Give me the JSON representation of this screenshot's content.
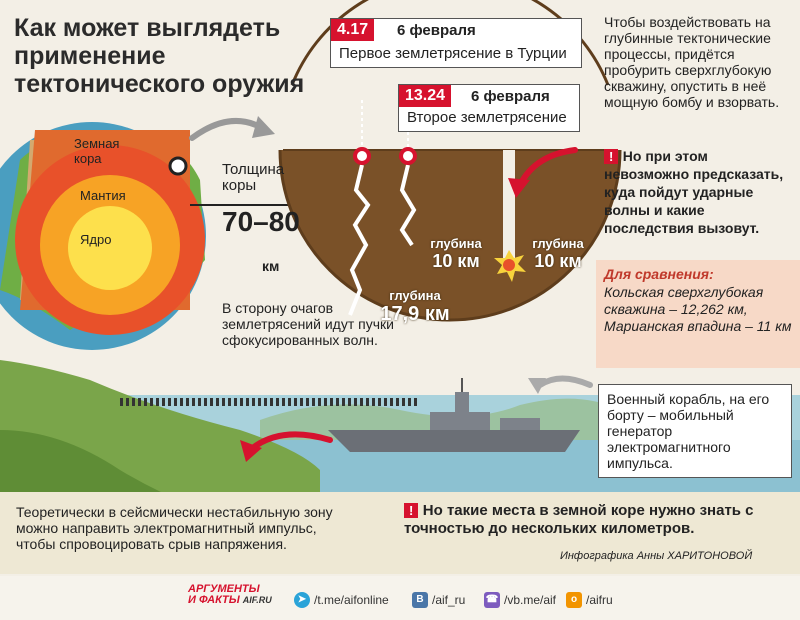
{
  "title": "Как может выглядеть применение тектонического оружия",
  "earth": {
    "crust_label": "Земная кора",
    "mantle_label": "Мантия",
    "core_label": "Ядро",
    "thickness_label": "Толщина коры",
    "thickness_value": "70–80",
    "thickness_unit": "км",
    "waves_text": "В сторону очагов землетрясений идут пучки сфокусированных волн."
  },
  "quakes": {
    "first": {
      "time": "4.17",
      "date": "6 февраля",
      "label": "Первое землетрясение в Турции"
    },
    "second": {
      "time": "13.24",
      "date": "6 февраля",
      "label": "Второе землетрясение"
    },
    "depths": [
      {
        "label": "глубина",
        "value": "10 км"
      },
      {
        "label": "глубина",
        "value": "10 км"
      },
      {
        "label": "глубина",
        "value": "17,9 км"
      }
    ]
  },
  "right_panel": {
    "text": "Чтобы воздействовать на глубинные тектонические процессы, придётся пробурить сверхглубокую скважину, опустить в неё мощную бомбу и взорвать.",
    "warning": "Но при этом невозможно предсказать, куда пойдут ударные волны и какие последствия вызовут.",
    "compare_title": "Для сравнения:",
    "compare_text": "Кольская сверхглубокая скважина – 12,262 км, Марианская впадина – 11 км"
  },
  "ship_text": "Военный корабль, на его борту – мобильный генератор электромагнитного импульса.",
  "bottom": {
    "left_text": "Теоретически в сейсмически нестабильную зону можно направить электромагнитный импульс, чтобы спровоцировать срыв напряжения.",
    "warning": "Но такие места в земной коре нужно знать с точностью до нескольких километров.",
    "credit": "Инфографика Анны ХАРИТОНОВОЙ"
  },
  "footer": {
    "logo_line1": "АРГУМЕНТЫ",
    "logo_line2": "И ФАКТЫ",
    "logo_domain": "AIF.RU",
    "links": [
      {
        "icon": "telegram-icon",
        "text": "/t.me/aifonline"
      },
      {
        "icon": "vk-icon",
        "text": "/aif_ru"
      },
      {
        "icon": "viber-icon",
        "text": "/vb.me/aif"
      },
      {
        "icon": "ok-icon",
        "text": "/aifru"
      }
    ]
  },
  "colors": {
    "accent_red": "#d6122e",
    "soil": "#7a5128",
    "sea": "#8fc7d8",
    "grass": "#6b9a3e"
  }
}
